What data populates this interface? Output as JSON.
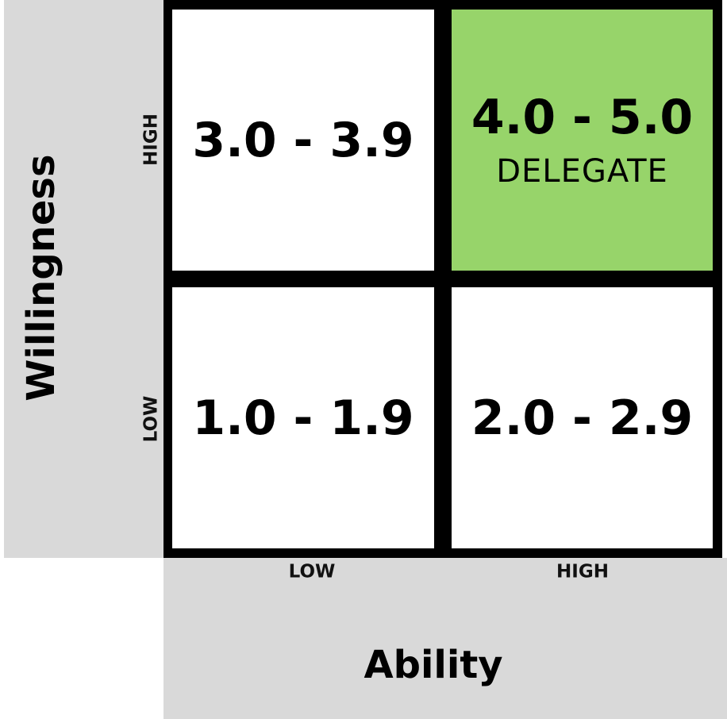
{
  "matrix": {
    "cells": {
      "high_willingness_low_ability": {
        "range": "3.0 - 3.9"
      },
      "high_willingness_high_ability": {
        "range": "4.0 - 5.0",
        "caption": "DELEGATE"
      },
      "low_willingness_low_ability": {
        "range": "1.0 - 1.9"
      },
      "low_willingness_high_ability": {
        "range": "2.0 - 2.9"
      }
    },
    "highlight_color": "#97d46a"
  },
  "y_axis": {
    "title": "Willingness",
    "ticks": {
      "high": "HIGH",
      "low": "LOW"
    }
  },
  "x_axis": {
    "title": "Ability",
    "ticks": {
      "low": "LOW",
      "high": "HIGH"
    }
  }
}
